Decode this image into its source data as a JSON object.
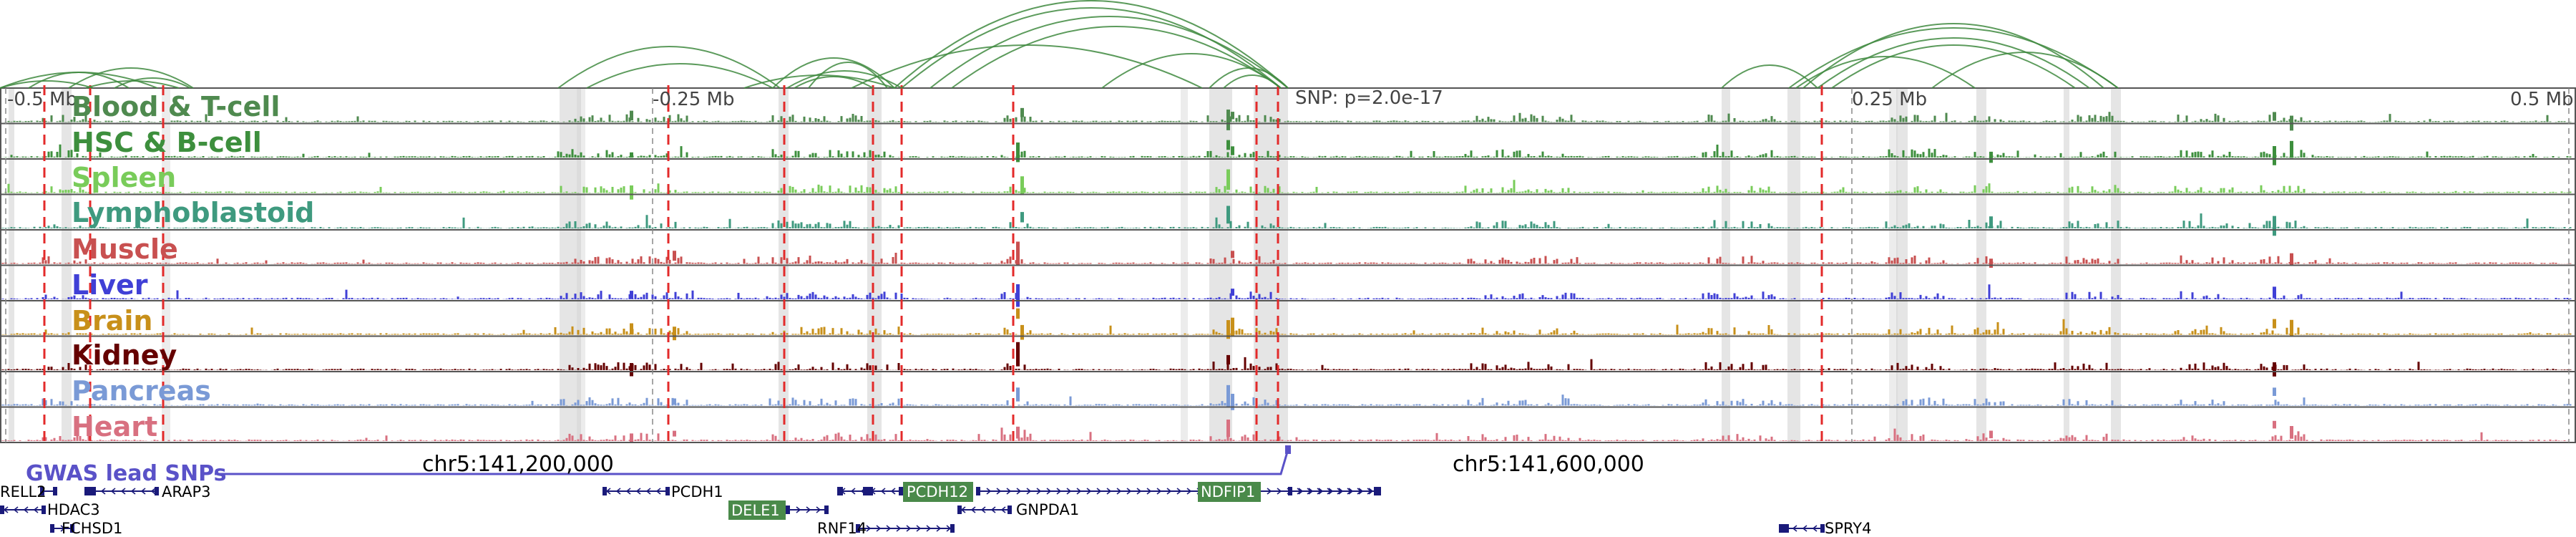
{
  "colors": {
    "arc": "#3f8a3f",
    "snp": "#e32a2a",
    "region": "#cfcfcf",
    "border": "#555555",
    "gwas": "#5a52c8",
    "gene": "#1a1a7a",
    "gene_highlight_bg": "#4a8a4a"
  },
  "axis": {
    "ticks": [
      "-0.5 Mb",
      "-0.25 Mb",
      "0.25 Mb",
      "0.5 Mb"
    ],
    "snp_label": "SNP: p=2.0e-17"
  },
  "tracks": [
    {
      "label": "Blood & T-cell",
      "color": "#4f8a4f"
    },
    {
      "label": "HSC & B-cell",
      "color": "#3d8f3d"
    },
    {
      "label": "Spleen",
      "color": "#79cc5a"
    },
    {
      "label": "Lymphoblastoid",
      "color": "#3f9a7f"
    },
    {
      "label": "Muscle",
      "color": "#c85050"
    },
    {
      "label": "Liver",
      "color": "#4040d6"
    },
    {
      "label": "Brain",
      "color": "#c8901a"
    },
    {
      "label": "Kidney",
      "color": "#650000"
    },
    {
      "label": "Pancreas",
      "color": "#7a9ad6"
    },
    {
      "label": "Heart",
      "color": "#d87080"
    }
  ],
  "gwas": {
    "label": "GWAS lead SNPs"
  },
  "coordinates": [
    "chr5:141,200,000",
    "chr5:141,600,000"
  ],
  "genes": [
    {
      "name": "RELL2",
      "highlight": false
    },
    {
      "name": "ARAP3",
      "highlight": false
    },
    {
      "name": "HDAC3",
      "highlight": false
    },
    {
      "name": "FCHSD1",
      "highlight": false
    },
    {
      "name": "PCDH1",
      "highlight": false
    },
    {
      "name": "PCDH12",
      "highlight": true
    },
    {
      "name": "DELE1",
      "highlight": true
    },
    {
      "name": "RNF14",
      "highlight": false
    },
    {
      "name": "GNPDA1",
      "highlight": false
    },
    {
      "name": "NDFIP1",
      "highlight": true
    },
    {
      "name": "SPRY4",
      "highlight": false
    }
  ]
}
